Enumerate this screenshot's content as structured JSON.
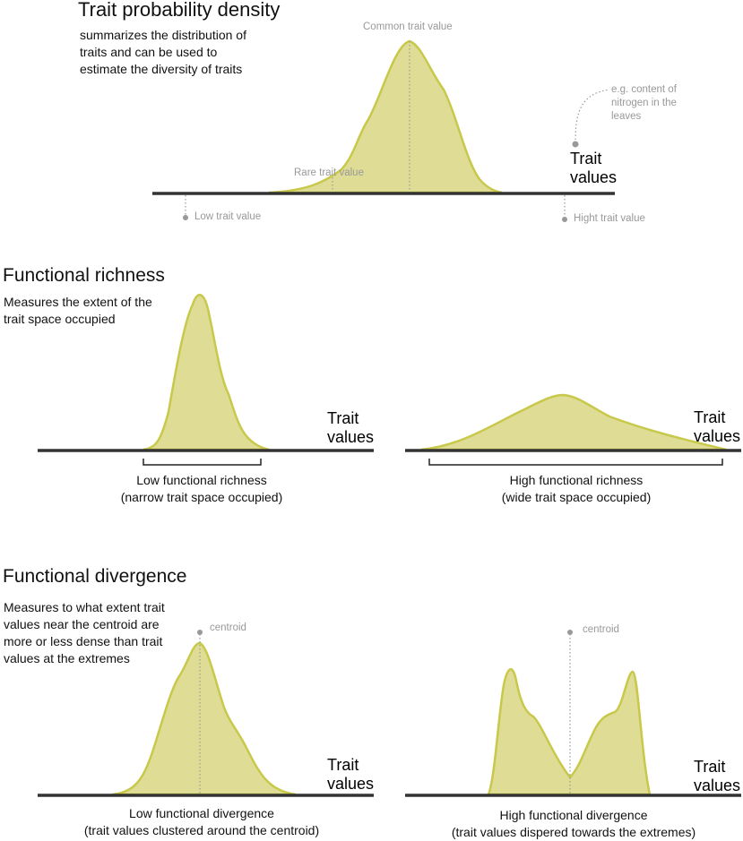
{
  "sections": {
    "density": {
      "title": "Trait probability density",
      "description": "summarizes the distribution of traits and can be used to estimate the diversity of traits",
      "common": "Common trait value",
      "rare": "Rare trait value",
      "low": "Low trait value",
      "high": "Hight trait value",
      "example": "e.g. content of nitrogen in the leaves",
      "axis": "Trait values"
    },
    "richness": {
      "title": "Functional richness",
      "description": "Measures the extent of the trait space occupied",
      "low_label": "Low functional richness",
      "low_sub": "(narrow trait space occupied)",
      "high_label": "High functional richness",
      "high_sub": "(wide trait space occupied)",
      "axis": "Trait values"
    },
    "divergence": {
      "title": "Functional divergence",
      "description": "Measures to what extent trait values near the centroid are more or less dense than trait values at the extremes",
      "centroid": "centroid",
      "low_label": "Low functional divergence",
      "low_sub": "(trait values clustered around the centroid)",
      "high_label": "High functional divergence",
      "high_sub": "(trait values dispered towards the extremes)",
      "axis": "Trait values"
    }
  },
  "colors": {
    "fill": "#dfdc96",
    "stroke": "#c8c84a",
    "axis": "#333333",
    "annotation": "#999999"
  }
}
